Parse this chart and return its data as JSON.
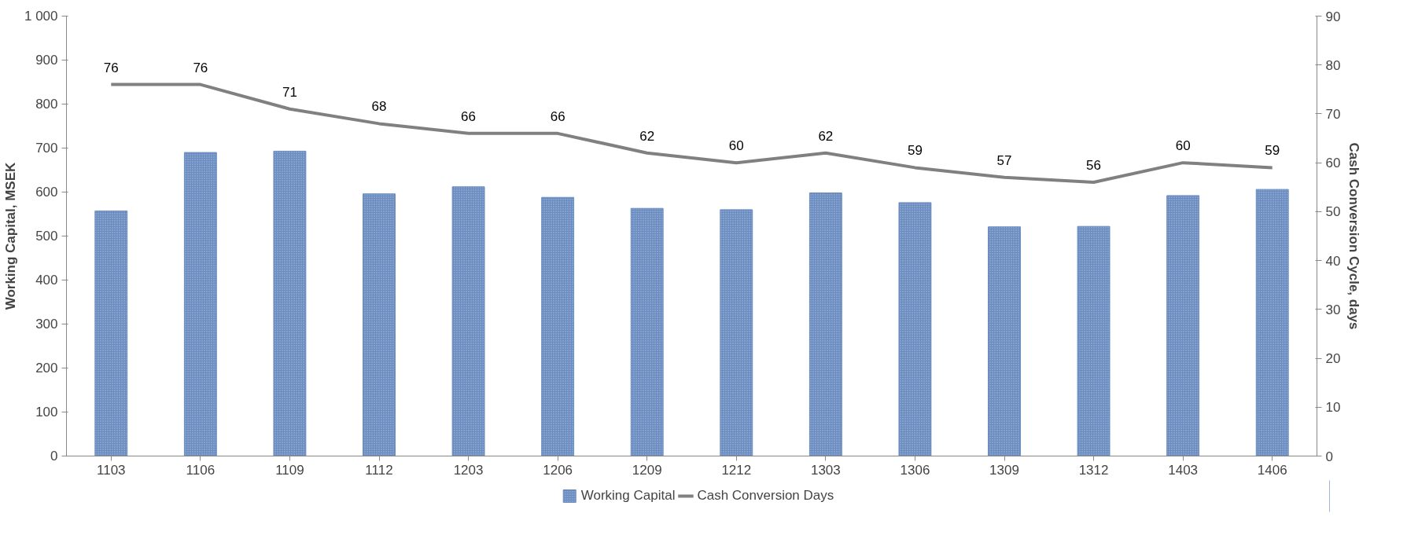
{
  "chart_data": {
    "type": "bar",
    "categories": [
      "1103",
      "1106",
      "1109",
      "1112",
      "1203",
      "1206",
      "1209",
      "1212",
      "1303",
      "1306",
      "1309",
      "1312",
      "1403",
      "1406"
    ],
    "ylabel": "Working Capital, MSEK",
    "y2label": "Cash Conversion Cycle, days",
    "ylim": [
      0,
      1000
    ],
    "yticks": [
      0,
      100,
      200,
      300,
      400,
      500,
      600,
      700,
      800,
      900,
      {
        "value": 1000,
        "label": "1 000"
      }
    ],
    "y2lim": [
      0,
      90
    ],
    "y2ticks": [
      0,
      10,
      20,
      30,
      40,
      50,
      60,
      70,
      80,
      90
    ],
    "grid": false,
    "legend": "bottom",
    "series": [
      {
        "name": "Working Capital",
        "type": "bar",
        "color": "#6a8cc0",
        "values": [
          557,
          690,
          693,
          596,
          612,
          588,
          563,
          560,
          598,
          576,
          521,
          522,
          592,
          606
        ]
      },
      {
        "name": "Cash Conversion Days",
        "type": "line",
        "axis": "y2",
        "color": "#808080",
        "data_labels": true,
        "values": [
          76,
          76,
          71,
          68,
          66,
          66,
          62,
          60,
          62,
          59,
          57,
          56,
          60,
          59
        ]
      }
    ]
  }
}
